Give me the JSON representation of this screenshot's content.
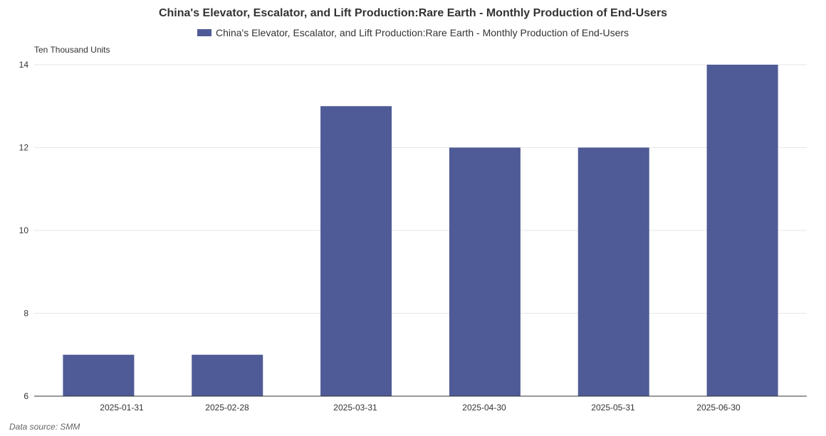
{
  "chart_data": {
    "type": "bar",
    "title": "China's Elevator, Escalator, and Lift Production:Rare Earth - Monthly Production of End-Users",
    "ylabel": "Ten Thousand Units",
    "categories": [
      "2025-01-31",
      "2025-02-28",
      "2025-03-31",
      "2025-04-30",
      "2025-05-31",
      "2025-06-30"
    ],
    "series": [
      {
        "name": "China's Elevator, Escalator, and Lift Production:Rare Earth - Monthly Production of End-Users",
        "values": [
          7,
          7,
          13,
          12,
          12,
          14
        ],
        "color": "#4f5b96"
      }
    ],
    "ylim": [
      6,
      14
    ],
    "yticks": [
      6,
      8,
      10,
      12,
      14
    ],
    "grid": true,
    "legend": "top-center"
  },
  "source": "Data source:  SMM"
}
